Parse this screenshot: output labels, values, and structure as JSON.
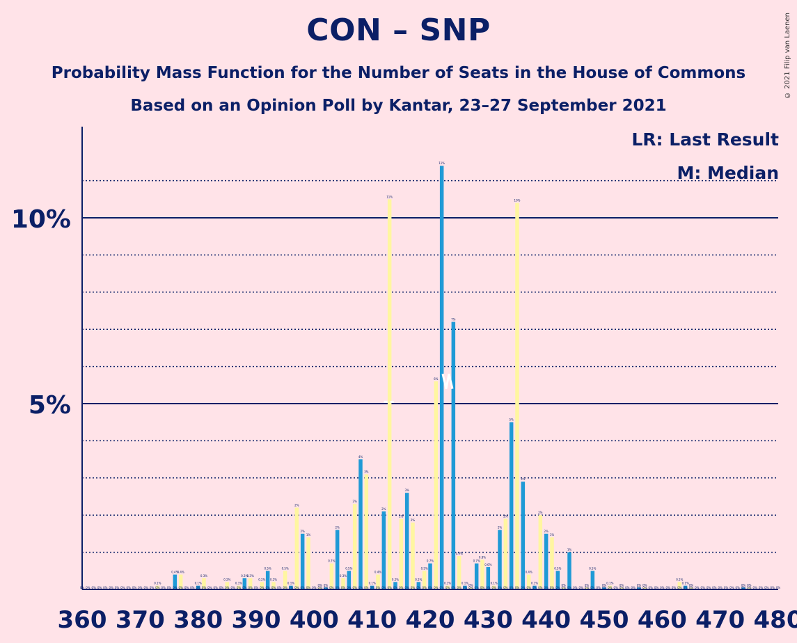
{
  "title": "CON – SNP",
  "subtitle": "Probability Mass Function for the Number of Seats in the House of Commons",
  "subtitle2": "Based on an Opinion Poll by Kantar, 23–27 September 2021",
  "copyright": "© 2021 Filip van Laenen",
  "legend": {
    "last_result": "LR: Last Result",
    "median": "M: Median"
  },
  "colors": {
    "background": "#ffe3e8",
    "text": "#0b1f66",
    "series_blue": "#1f9ad6",
    "series_yellow": "#fff6a0",
    "median_marker": "#ffffff"
  },
  "chart_data": {
    "type": "bar",
    "xlabel": "",
    "ylabel": "",
    "xlim": [
      360,
      480
    ],
    "ylim": [
      0,
      12.3
    ],
    "x_ticks": [
      "360",
      "370",
      "380",
      "390",
      "400",
      "410",
      "420",
      "430",
      "440",
      "450",
      "460",
      "470",
      "480"
    ],
    "y_ticks": [
      {
        "value": 5,
        "label": "5%"
      },
      {
        "value": 10,
        "label": "10%"
      }
    ],
    "grid": "dotted at every 1%, solid at 5% and 10%",
    "median_seat": 423,
    "last_result_seat": 413,
    "series": [
      {
        "color": "blue",
        "points": [
          [
            376,
            0.4
          ],
          [
            380,
            0.1
          ],
          [
            388,
            0.3
          ],
          [
            392,
            0.5
          ],
          [
            396,
            0.1
          ],
          [
            398,
            1.5
          ],
          [
            402,
            0.05
          ],
          [
            404,
            1.6
          ],
          [
            406,
            0.5
          ],
          [
            408,
            3.5
          ],
          [
            410,
            0.1
          ],
          [
            412,
            2.1
          ],
          [
            414,
            0.2
          ],
          [
            416,
            2.6
          ],
          [
            418,
            0.2
          ],
          [
            420,
            0.7
          ],
          [
            422,
            11.4
          ],
          [
            424,
            7.2
          ],
          [
            426,
            0.1
          ],
          [
            428,
            0.7
          ],
          [
            430,
            0.6
          ],
          [
            432,
            1.6
          ],
          [
            434,
            4.5
          ],
          [
            436,
            2.9
          ],
          [
            438,
            0.1
          ],
          [
            440,
            1.5
          ],
          [
            442,
            0.5
          ],
          [
            444,
            1.0
          ],
          [
            448,
            0.5
          ],
          [
            450,
            0.05
          ],
          [
            456,
            0.05
          ],
          [
            464,
            0.1
          ],
          [
            474,
            0.05
          ]
        ]
      },
      {
        "color": "yellow",
        "points": [
          [
            373,
            0.1
          ],
          [
            377,
            0.4
          ],
          [
            381,
            0.3
          ],
          [
            385,
            0.2
          ],
          [
            387,
            0.1
          ],
          [
            389,
            0.3
          ],
          [
            391,
            0.2
          ],
          [
            393,
            0.2
          ],
          [
            395,
            0.5
          ],
          [
            397,
            2.2
          ],
          [
            399,
            1.4
          ],
          [
            401,
            0.05
          ],
          [
            403,
            0.7
          ],
          [
            405,
            0.3
          ],
          [
            407,
            2.3
          ],
          [
            409,
            3.1
          ],
          [
            411,
            0.4
          ],
          [
            413,
            10.5
          ],
          [
            415,
            1.9
          ],
          [
            417,
            1.8
          ],
          [
            419,
            0.5
          ],
          [
            421,
            5.6
          ],
          [
            423,
            0.1
          ],
          [
            425,
            0.9
          ],
          [
            427,
            0.05
          ],
          [
            429,
            0.8
          ],
          [
            431,
            0.1
          ],
          [
            433,
            1.9
          ],
          [
            435,
            10.4
          ],
          [
            437,
            0.4
          ],
          [
            439,
            2.0
          ],
          [
            441,
            1.4
          ],
          [
            443,
            0.05
          ],
          [
            447,
            0.05
          ],
          [
            451,
            0.1
          ],
          [
            453,
            0.05
          ],
          [
            457,
            0.05
          ],
          [
            463,
            0.2
          ],
          [
            465,
            0.05
          ],
          [
            475,
            0.05
          ]
        ]
      }
    ]
  }
}
